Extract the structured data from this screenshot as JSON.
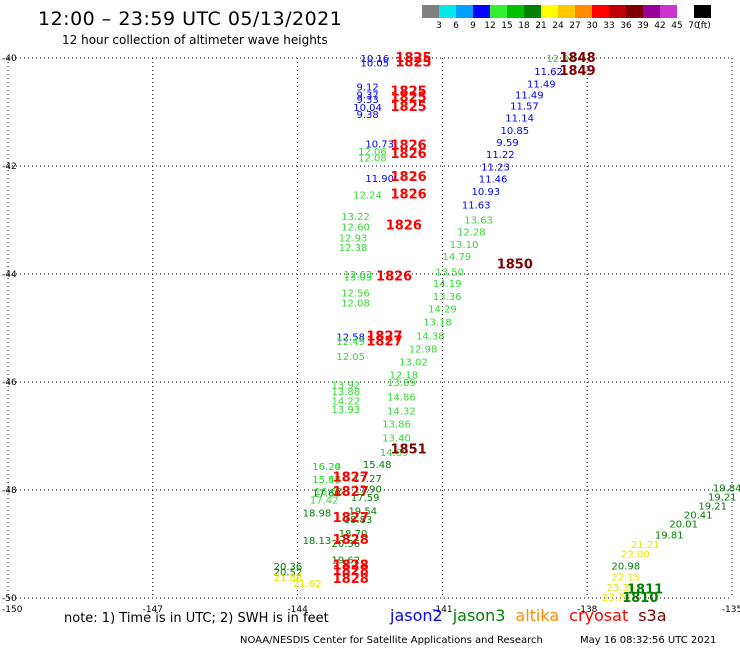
{
  "title": "12:00 – 23:59 UTC 05/13/2021",
  "subtitle": "12 hour collection of altimeter wave heights",
  "legend": {
    "colors": [
      "#808080",
      "#00e8e8",
      "#00a0ff",
      "#0000ff",
      "#33ee33",
      "#00c000",
      "#008000",
      "#ffff00",
      "#ffc800",
      "#ff8c00",
      "#ff0000",
      "#c00000",
      "#800000",
      "#990099",
      "#cc33cc",
      "#ffffff",
      "#000000"
    ],
    "labels": [
      "3",
      "6",
      "9",
      "12",
      "15",
      "18",
      "21",
      "24",
      "27",
      "30",
      "33",
      "36",
      "39",
      "42",
      "45",
      "70",
      "(ft)"
    ]
  },
  "note": "note: 1) Time is in UTC; 2) SWH is in feet",
  "satellites": [
    {
      "name": "jason2",
      "color": "#0000ff"
    },
    {
      "name": "jason3",
      "color": "#008000"
    },
    {
      "name": "altika",
      "color": "#ff8c00"
    },
    {
      "name": "cryosat",
      "color": "#ff0000"
    },
    {
      "name": "s3a",
      "color": "#800000"
    }
  ],
  "footer": {
    "credit": "NOAA/NESDIS Center for Satellite Applications and Research",
    "timestamp": "May 16 08:32:56 UTC 2021"
  },
  "chart_data": {
    "type": "scatter",
    "x_ticks": [
      "-150",
      "-147",
      "-144",
      "-141",
      "-138",
      "-135"
    ],
    "y_ticks": [
      "-40",
      "-42",
      "-44",
      "-46",
      "-48",
      "-50"
    ],
    "xlim": [
      -150,
      -135
    ],
    "ylim": [
      -50,
      -40
    ],
    "grid": "dotted",
    "series": [
      {
        "name": "jason2",
        "color": "#0000ff",
        "points": [
          {
            "lon": -142.4,
            "lat": -40.0,
            "text": "10.16"
          },
          {
            "lon": -142.4,
            "lat": -40.08,
            "text": "10.05"
          },
          {
            "lon": -142.55,
            "lat": -40.53,
            "text": "9.12"
          },
          {
            "lon": -142.55,
            "lat": -40.68,
            "text": "9.37"
          },
          {
            "lon": -142.55,
            "lat": -40.76,
            "text": "9.33"
          },
          {
            "lon": -142.55,
            "lat": -40.91,
            "text": "10.04"
          },
          {
            "lon": -142.55,
            "lat": -41.04,
            "text": "9.38"
          },
          {
            "lon": -142.3,
            "lat": -41.58,
            "text": "10.73"
          },
          {
            "lon": -142.3,
            "lat": -42.22,
            "text": "11.90"
          },
          {
            "lon": -138.8,
            "lat": -40.24,
            "text": "11.62"
          },
          {
            "lon": -138.95,
            "lat": -40.47,
            "text": "11.49"
          },
          {
            "lon": -139.2,
            "lat": -40.68,
            "text": "11.49"
          },
          {
            "lon": -139.3,
            "lat": -40.88,
            "text": "11.57"
          },
          {
            "lon": -139.4,
            "lat": -41.1,
            "text": "11.14"
          },
          {
            "lon": -139.5,
            "lat": -41.33,
            "text": "10.85"
          },
          {
            "lon": -139.65,
            "lat": -41.56,
            "text": "9.59"
          },
          {
            "lon": -139.8,
            "lat": -41.78,
            "text": "11.22"
          },
          {
            "lon": -139.9,
            "lat": -42.01,
            "text": "11.23"
          },
          {
            "lon": -139.95,
            "lat": -42.23,
            "text": "11.46"
          },
          {
            "lon": -140.1,
            "lat": -42.46,
            "text": "10.93"
          },
          {
            "lon": -140.3,
            "lat": -42.71,
            "text": "11.63"
          },
          {
            "lon": -142.9,
            "lat": -45.16,
            "text": "12.58"
          }
        ]
      },
      {
        "name": "jason3 (light)",
        "color": "#33dd33",
        "points": [
          {
            "lon": -138.55,
            "lat": -40.0,
            "text": "12.84"
          },
          {
            "lon": -142.45,
            "lat": -41.72,
            "text": "12.06"
          },
          {
            "lon": -142.45,
            "lat": -41.84,
            "text": "12.08"
          },
          {
            "lon": -142.55,
            "lat": -42.53,
            "text": "12.24"
          },
          {
            "lon": -142.8,
            "lat": -42.93,
            "text": "13.22"
          },
          {
            "lon": -142.8,
            "lat": -43.12,
            "text": "12.60"
          },
          {
            "lon": -142.85,
            "lat": -43.32,
            "text": "12.93"
          },
          {
            "lon": -142.85,
            "lat": -43.5,
            "text": "12.38"
          },
          {
            "lon": -142.75,
            "lat": -44.0,
            "text": "12.63"
          },
          {
            "lon": -142.75,
            "lat": -44.05,
            "text": "13.05"
          },
          {
            "lon": -142.8,
            "lat": -44.34,
            "text": "12.56"
          },
          {
            "lon": -142.8,
            "lat": -44.53,
            "text": "12.08"
          },
          {
            "lon": -142.9,
            "lat": -45.24,
            "text": "12.49"
          },
          {
            "lon": -142.9,
            "lat": -45.52,
            "text": "12.05"
          },
          {
            "lon": -140.25,
            "lat": -42.99,
            "text": "13.63"
          },
          {
            "lon": -140.4,
            "lat": -43.21,
            "text": "12.28"
          },
          {
            "lon": -140.55,
            "lat": -43.44,
            "text": "13.10"
          },
          {
            "lon": -140.7,
            "lat": -43.67,
            "text": "14.79"
          },
          {
            "lon": -140.85,
            "lat": -43.95,
            "text": "13.50"
          },
          {
            "lon": -140.9,
            "lat": -44.17,
            "text": "14.19"
          },
          {
            "lon": -140.9,
            "lat": -44.41,
            "text": "13.36"
          },
          {
            "lon": -141.0,
            "lat": -44.64,
            "text": "14.29"
          },
          {
            "lon": -141.1,
            "lat": -44.88,
            "text": "13.18"
          },
          {
            "lon": -141.25,
            "lat": -45.14,
            "text": "14.38"
          },
          {
            "lon": -141.4,
            "lat": -45.38,
            "text": "12.98"
          },
          {
            "lon": -141.6,
            "lat": -45.62,
            "text": "13.02"
          },
          {
            "lon": -141.8,
            "lat": -45.86,
            "text": "12.18"
          },
          {
            "lon": -141.85,
            "lat": -46.0,
            "text": "13.89"
          },
          {
            "lon": -141.85,
            "lat": -46.27,
            "text": "14.86"
          },
          {
            "lon": -141.85,
            "lat": -46.53,
            "text": "14.32"
          },
          {
            "lon": -141.95,
            "lat": -46.77,
            "text": "13.86"
          },
          {
            "lon": -141.95,
            "lat": -47.03,
            "text": "13.40"
          },
          {
            "lon": -142.0,
            "lat": -47.3,
            "text": "14.89"
          },
          {
            "lon": -143.0,
            "lat": -46.05,
            "text": "13.92"
          },
          {
            "lon": -143.0,
            "lat": -46.17,
            "text": "13.88"
          },
          {
            "lon": -143.0,
            "lat": -46.34,
            "text": "14.22"
          },
          {
            "lon": -143.0,
            "lat": -46.5,
            "text": "13.93"
          },
          {
            "lon": -143.4,
            "lat": -47.56,
            "text": "16.24"
          },
          {
            "lon": -143.4,
            "lat": -47.56,
            "text": "16.20"
          },
          {
            "lon": -143.4,
            "lat": -47.8,
            "text": "15.57"
          },
          {
            "lon": -143.4,
            "lat": -47.8,
            "text": "15.48"
          },
          {
            "lon": -143.35,
            "lat": -48.02,
            "text": "16.60"
          },
          {
            "lon": -143.45,
            "lat": -48.18,
            "text": "17.42"
          }
        ]
      },
      {
        "name": "jason3",
        "color": "#008000",
        "points": [
          {
            "lon": -142.35,
            "lat": -47.52,
            "text": "15.48"
          },
          {
            "lon": -142.55,
            "lat": -47.78,
            "text": "17.27"
          },
          {
            "lon": -142.55,
            "lat": -47.97,
            "text": "17.90"
          },
          {
            "lon": -142.6,
            "lat": -48.13,
            "text": "17.59"
          },
          {
            "lon": -142.65,
            "lat": -48.38,
            "text": "19.54"
          },
          {
            "lon": -142.75,
            "lat": -48.54,
            "text": "18.83"
          },
          {
            "lon": -142.85,
            "lat": -48.8,
            "text": "18.70"
          },
          {
            "lon": -143.0,
            "lat": -48.98,
            "text": "20.36"
          },
          {
            "lon": -143.0,
            "lat": -49.29,
            "text": "19.62"
          },
          {
            "lon": -143.4,
            "lat": -48.05,
            "text": "17.60"
          },
          {
            "lon": -143.6,
            "lat": -48.42,
            "text": "18.98"
          },
          {
            "lon": -143.6,
            "lat": -48.93,
            "text": "18.13"
          },
          {
            "lon": -144.2,
            "lat": -49.41,
            "text": "20.36"
          },
          {
            "lon": -144.2,
            "lat": -49.51,
            "text": "20.52"
          },
          {
            "lon": -135.1,
            "lat": -47.95,
            "text": "19.84"
          },
          {
            "lon": -135.2,
            "lat": -48.12,
            "text": "19.21"
          },
          {
            "lon": -135.4,
            "lat": -48.29,
            "text": "19.21"
          },
          {
            "lon": -135.7,
            "lat": -48.45,
            "text": "20.41"
          },
          {
            "lon": -136.0,
            "lat": -48.62,
            "text": "20.01"
          },
          {
            "lon": -136.3,
            "lat": -48.82,
            "text": "19.81"
          },
          {
            "lon": -137.2,
            "lat": -49.4,
            "text": "20.98"
          }
        ]
      },
      {
        "name": "altika",
        "color": "#e8e800",
        "points": [
          {
            "lon": -136.8,
            "lat": -49.0,
            "text": "21.21"
          },
          {
            "lon": -137.0,
            "lat": -49.18,
            "text": "22.00"
          },
          {
            "lon": -137.2,
            "lat": -49.6,
            "text": "22.15"
          },
          {
            "lon": -137.3,
            "lat": -49.8,
            "text": "23.36"
          },
          {
            "lon": -137.4,
            "lat": -49.98,
            "text": "23.70"
          },
          {
            "lon": -144.2,
            "lat": -49.61,
            "text": "21.88"
          },
          {
            "lon": -143.8,
            "lat": -49.72,
            "text": "21.62"
          }
        ]
      },
      {
        "name": "cryosat",
        "color": "#ff0000",
        "bold": true,
        "points": [
          {
            "lon": -141.6,
            "lat": -40.0,
            "text": "1825"
          },
          {
            "lon": -141.6,
            "lat": -40.08,
            "text": "1825"
          },
          {
            "lon": -141.7,
            "lat": -40.62,
            "text": "1825"
          },
          {
            "lon": -141.7,
            "lat": -40.73,
            "text": "1825"
          },
          {
            "lon": -141.7,
            "lat": -40.91,
            "text": "1825"
          },
          {
            "lon": -141.7,
            "lat": -41.62,
            "text": "1826"
          },
          {
            "lon": -141.7,
            "lat": -41.78,
            "text": "1826"
          },
          {
            "lon": -141.7,
            "lat": -42.2,
            "text": "1826"
          },
          {
            "lon": -141.7,
            "lat": -42.53,
            "text": "1826"
          },
          {
            "lon": -141.8,
            "lat": -43.1,
            "text": "1826"
          },
          {
            "lon": -142.0,
            "lat": -44.05,
            "text": "1826"
          },
          {
            "lon": -142.2,
            "lat": -45.16,
            "text": "1827"
          },
          {
            "lon": -142.2,
            "lat": -45.25,
            "text": "1827"
          },
          {
            "lon": -142.9,
            "lat": -47.77,
            "text": "1827"
          },
          {
            "lon": -142.9,
            "lat": -48.04,
            "text": "1827"
          },
          {
            "lon": -142.9,
            "lat": -48.52,
            "text": "1827"
          },
          {
            "lon": -142.9,
            "lat": -48.93,
            "text": "1828"
          },
          {
            "lon": -142.9,
            "lat": -49.4,
            "text": "1828"
          },
          {
            "lon": -142.9,
            "lat": -49.5,
            "text": "1828"
          },
          {
            "lon": -142.9,
            "lat": -49.65,
            "text": "1828"
          }
        ]
      },
      {
        "name": "s3a",
        "color": "#800000",
        "bold": true,
        "points": [
          {
            "lon": -138.2,
            "lat": -40.0,
            "text": "1848"
          },
          {
            "lon": -138.2,
            "lat": -40.24,
            "text": "1849"
          },
          {
            "lon": -139.5,
            "lat": -43.82,
            "text": "1850"
          },
          {
            "lon": -141.7,
            "lat": -47.25,
            "text": "1851"
          }
        ]
      },
      {
        "name": "jason3 (times)",
        "color": "#008000",
        "bold": true,
        "points": [
          {
            "lon": -136.8,
            "lat": -49.84,
            "text": "1811"
          },
          {
            "lon": -136.9,
            "lat": -50.0,
            "text": "1810"
          }
        ]
      }
    ]
  }
}
